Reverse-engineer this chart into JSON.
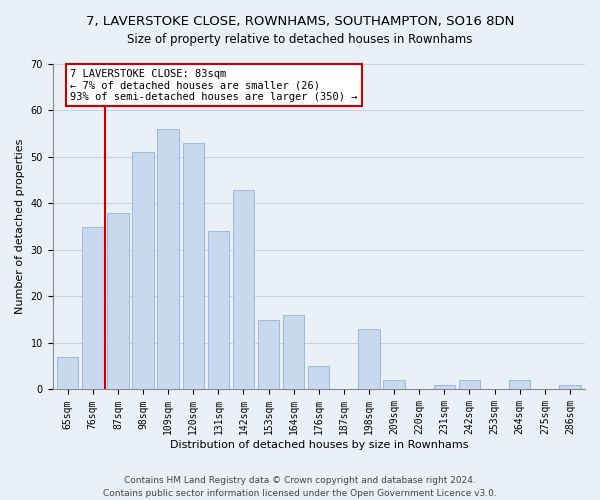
{
  "title": "7, LAVERSTOKE CLOSE, ROWNHAMS, SOUTHAMPTON, SO16 8DN",
  "subtitle": "Size of property relative to detached houses in Rownhams",
  "xlabel": "Distribution of detached houses by size in Rownhams",
  "ylabel": "Number of detached properties",
  "bar_labels": [
    "65sqm",
    "76sqm",
    "87sqm",
    "98sqm",
    "109sqm",
    "120sqm",
    "131sqm",
    "142sqm",
    "153sqm",
    "164sqm",
    "176sqm",
    "187sqm",
    "198sqm",
    "209sqm",
    "220sqm",
    "231sqm",
    "242sqm",
    "253sqm",
    "264sqm",
    "275sqm",
    "286sqm"
  ],
  "bar_values": [
    7,
    35,
    38,
    51,
    56,
    53,
    34,
    43,
    15,
    16,
    5,
    0,
    13,
    2,
    0,
    1,
    2,
    0,
    2,
    0,
    1
  ],
  "bar_color": "#c8d8ee",
  "bar_edge_color": "#a0b8d8",
  "bg_color": "#eaf0f8",
  "vline_color": "#cc0000",
  "vline_x_index": 1.5,
  "annotation_title": "7 LAVERSTOKE CLOSE: 83sqm",
  "annotation_line1": "← 7% of detached houses are smaller (26)",
  "annotation_line2": "93% of semi-detached houses are larger (350) →",
  "annotation_box_color": "#ffffff",
  "annotation_box_edge": "#cc0000",
  "footer1": "Contains HM Land Registry data © Crown copyright and database right 2024.",
  "footer2": "Contains public sector information licensed under the Open Government Licence v3.0.",
  "ylim": [
    0,
    70
  ],
  "title_fontsize": 9.5,
  "subtitle_fontsize": 8.5,
  "xlabel_fontsize": 8,
  "ylabel_fontsize": 8,
  "tick_fontsize": 7,
  "annotation_fontsize": 7.5,
  "footer_fontsize": 6.5
}
